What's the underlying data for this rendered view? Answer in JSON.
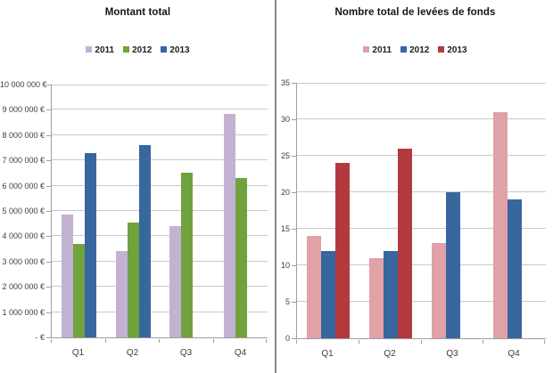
{
  "app": {
    "description": "Two side-by-side Excel bar charts comparing fundraising amount and count by quarter"
  },
  "divider_color": "#8a8a8a",
  "chart_data": [
    {
      "type": "bar",
      "title": "Montant total",
      "categories": [
        "Q1",
        "Q2",
        "Q3",
        "Q4"
      ],
      "series": [
        {
          "name": "2011",
          "color": "#c2b1d1",
          "values": [
            4850000,
            3400000,
            4400000,
            8850000
          ]
        },
        {
          "name": "2012",
          "color": "#70a23e",
          "values": [
            3700000,
            4550000,
            6500000,
            6300000
          ]
        },
        {
          "name": "2013",
          "color": "#38669e",
          "values": [
            7300000,
            7600000,
            null,
            null
          ]
        }
      ],
      "ylim": [
        0,
        10000000
      ],
      "ytick_step": 1000000,
      "ytick_labels": [
        "- €",
        "1 000 000 €",
        "2 000 000 €",
        "3 000 000 €",
        "4 000 000 €",
        "5 000 000 €",
        "6 000 000 €",
        "7 000 000 €",
        "8 000 000 €",
        "9 000 000 €",
        "10 000 000 €"
      ],
      "legend_position": "top",
      "grid": true
    },
    {
      "type": "bar",
      "title": "Nombre total de levées de fonds",
      "categories": [
        "Q1",
        "Q2",
        "Q3",
        "Q4"
      ],
      "series": [
        {
          "name": "2011",
          "color": "#e0a1a7",
          "values": [
            14,
            11,
            13,
            31
          ]
        },
        {
          "name": "2012",
          "color": "#38669e",
          "values": [
            12,
            12,
            20,
            19
          ]
        },
        {
          "name": "2013",
          "color": "#b23a3e",
          "values": [
            24,
            26,
            null,
            null
          ]
        }
      ],
      "ylim": [
        0,
        35
      ],
      "ytick_step": 5,
      "ytick_labels": [
        "0",
        "5",
        "10",
        "15",
        "20",
        "25",
        "30",
        "35"
      ],
      "legend_position": "top",
      "grid": true
    }
  ]
}
